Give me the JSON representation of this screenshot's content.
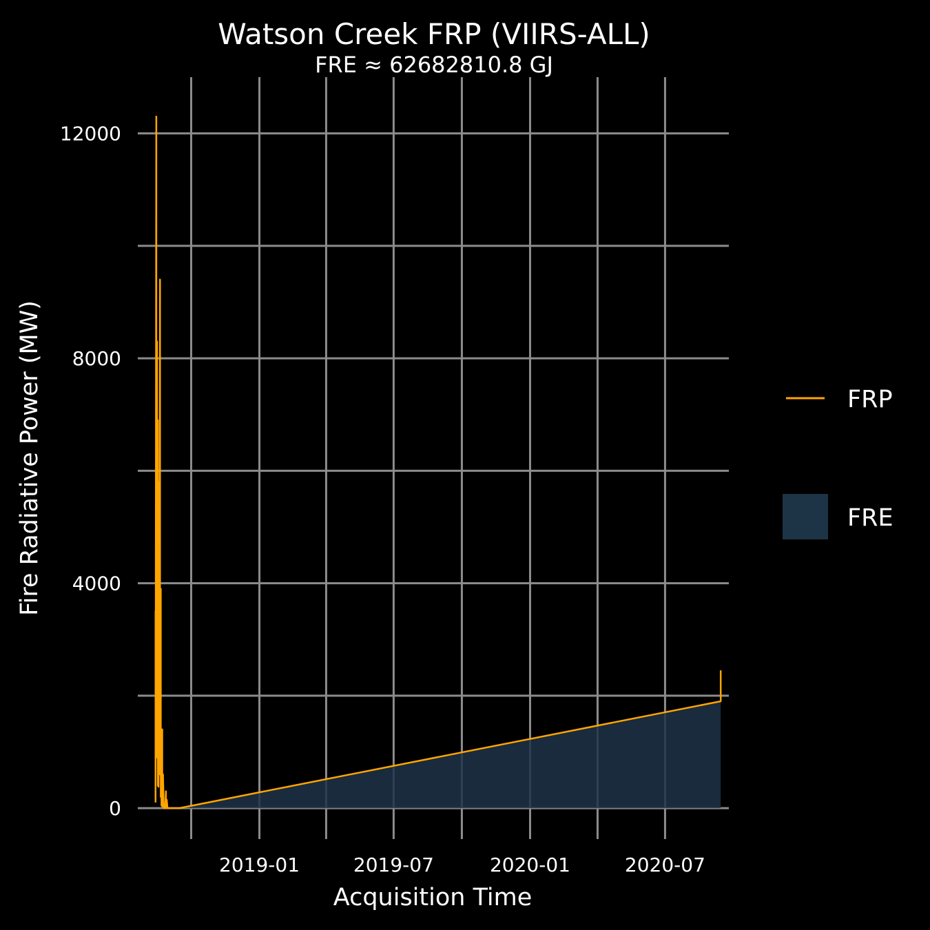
{
  "chart_data": {
    "type": "line",
    "title": "Watson Creek FRP (VIIRS-ALL)",
    "subtitle": "FRE ≈ 62682810.8 GJ",
    "xlabel": "Acquisition Time",
    "ylabel": "Fire Radiative Power (MW)",
    "xlim": [
      "2018-07-21",
      "2020-09-25"
    ],
    "ylim": [
      -550,
      13000
    ],
    "y_ticks": [
      0,
      4000,
      8000,
      12000
    ],
    "x_tick_labels": [
      {
        "date": "2019-01-01",
        "label": "2019-01"
      },
      {
        "date": "2019-07-01",
        "label": "2019-07"
      },
      {
        "date": "2020-01-01",
        "label": "2020-01"
      },
      {
        "date": "2020-07-01",
        "label": "2020-07"
      }
    ],
    "grid": true,
    "legend_position": "right",
    "colors": {
      "background": "#000000",
      "grid": "#8c8c8c",
      "frp_line": "#FFA500",
      "fre_fill": "#1D3346",
      "text": "#ffffff"
    },
    "legend": [
      {
        "key": "FRP",
        "label": "FRP",
        "kind": "line"
      },
      {
        "key": "FRE",
        "label": "FRE",
        "kind": "fill"
      }
    ],
    "series": [
      {
        "name": "FRP",
        "kind": "line",
        "points": [
          [
            "2018-08-14",
            100
          ],
          [
            "2018-08-14",
            3500
          ],
          [
            "2018-08-14",
            300
          ],
          [
            "2018-08-15",
            12300
          ],
          [
            "2018-08-15",
            900
          ],
          [
            "2018-08-16",
            8300
          ],
          [
            "2018-08-16",
            1000
          ],
          [
            "2018-08-17",
            6900
          ],
          [
            "2018-08-17",
            400
          ],
          [
            "2018-08-18",
            5300
          ],
          [
            "2018-08-18",
            380
          ],
          [
            "2018-08-19",
            5800
          ],
          [
            "2018-08-19",
            800
          ],
          [
            "2018-08-20",
            9400
          ],
          [
            "2018-08-20",
            600
          ],
          [
            "2018-08-21",
            3900
          ],
          [
            "2018-08-21",
            200
          ],
          [
            "2018-08-22",
            1200
          ],
          [
            "2018-08-22",
            50
          ],
          [
            "2018-08-23",
            1400
          ],
          [
            "2018-08-23",
            30
          ],
          [
            "2018-08-24",
            600
          ],
          [
            "2018-08-25",
            0
          ],
          [
            "2018-08-27",
            0
          ],
          [
            "2018-08-28",
            300
          ],
          [
            "2018-08-28",
            0
          ],
          [
            "2018-08-29",
            150
          ],
          [
            "2018-08-30",
            0
          ],
          [
            "2018-09-15",
            0
          ],
          [
            "2020-09-14",
            1900
          ],
          [
            "2020-09-14",
            2450
          ]
        ]
      },
      {
        "name": "FRE",
        "kind": "area",
        "points": [
          [
            "2018-09-15",
            0
          ],
          [
            "2020-09-14",
            1900
          ]
        ]
      }
    ]
  }
}
